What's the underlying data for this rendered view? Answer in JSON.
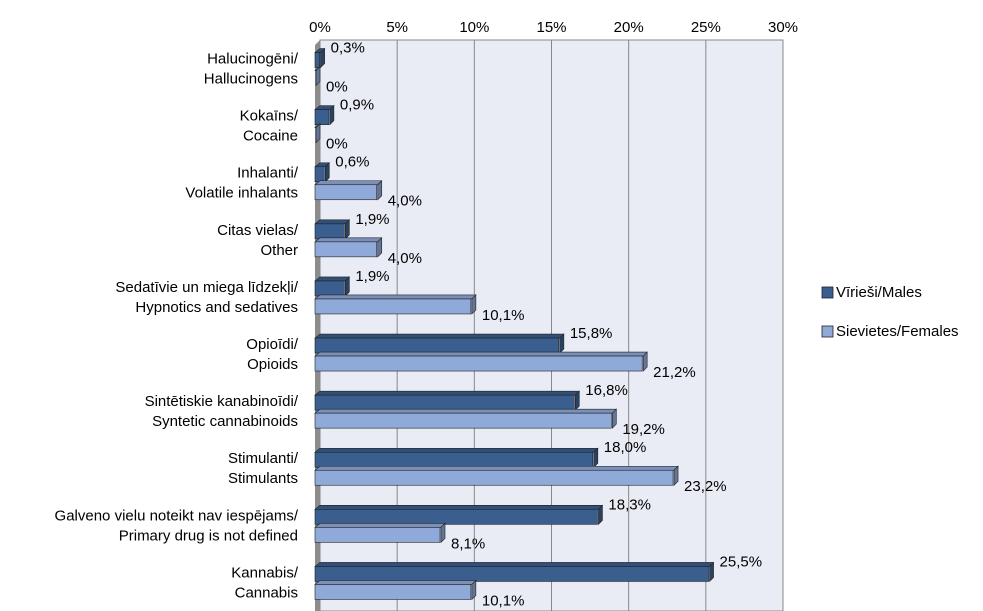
{
  "chart_data": {
    "type": "bar",
    "orientation": "horizontal",
    "categories": [
      [
        "Halucinogēni/",
        "Hallucinogens"
      ],
      [
        "Kokaīns/",
        "Cocaine"
      ],
      [
        "Inhalanti/",
        "Volatile inhalants"
      ],
      [
        "Citas vielas/",
        "Other"
      ],
      [
        "Sedatīvie un miega līdzekļi/",
        "Hypnotics and sedatives"
      ],
      [
        "Opioīdi/",
        "Opioids"
      ],
      [
        "Sintētiskie kanabinoīdi/",
        "Syntetic cannabinoids"
      ],
      [
        "Stimulanti/",
        "Stimulants"
      ],
      [
        "Galveno vielu noteikt nav iespējams/",
        "Primary drug is not defined"
      ],
      [
        "Kannabis/",
        "Cannabis"
      ]
    ],
    "series": [
      {
        "name": "Vīrieši/Males",
        "color": "#3a5e8e",
        "values": [
          0.3,
          0.9,
          0.6,
          1.9,
          1.9,
          15.8,
          16.8,
          18.0,
          18.3,
          25.5
        ],
        "value_labels": [
          "0,3%",
          "0,9%",
          "0,6%",
          "1,9%",
          "1,9%",
          "15,8%",
          "16,8%",
          "18,0%",
          "18,3%",
          "25,5%"
        ]
      },
      {
        "name": "Sievietes/Females",
        "color": "#8fa9d9",
        "values": [
          0,
          0,
          4.0,
          4.0,
          10.1,
          21.2,
          19.2,
          23.2,
          8.1,
          10.1
        ],
        "value_labels": [
          "0%",
          "0%",
          "4,0%",
          "4,0%",
          "10,1%",
          "21,2%",
          "19,2%",
          "23,2%",
          "8,1%",
          "10,1%"
        ]
      }
    ],
    "xlim": [
      0,
      30
    ],
    "xticks": [
      {
        "value": 0,
        "label": "0%"
      },
      {
        "value": 5,
        "label": "5%"
      },
      {
        "value": 10,
        "label": "10%"
      },
      {
        "value": 15,
        "label": "15%"
      },
      {
        "value": 20,
        "label": "20%"
      },
      {
        "value": 25,
        "label": "25%"
      },
      {
        "value": 30,
        "label": "30%"
      }
    ],
    "grid": true,
    "legend": "right"
  }
}
